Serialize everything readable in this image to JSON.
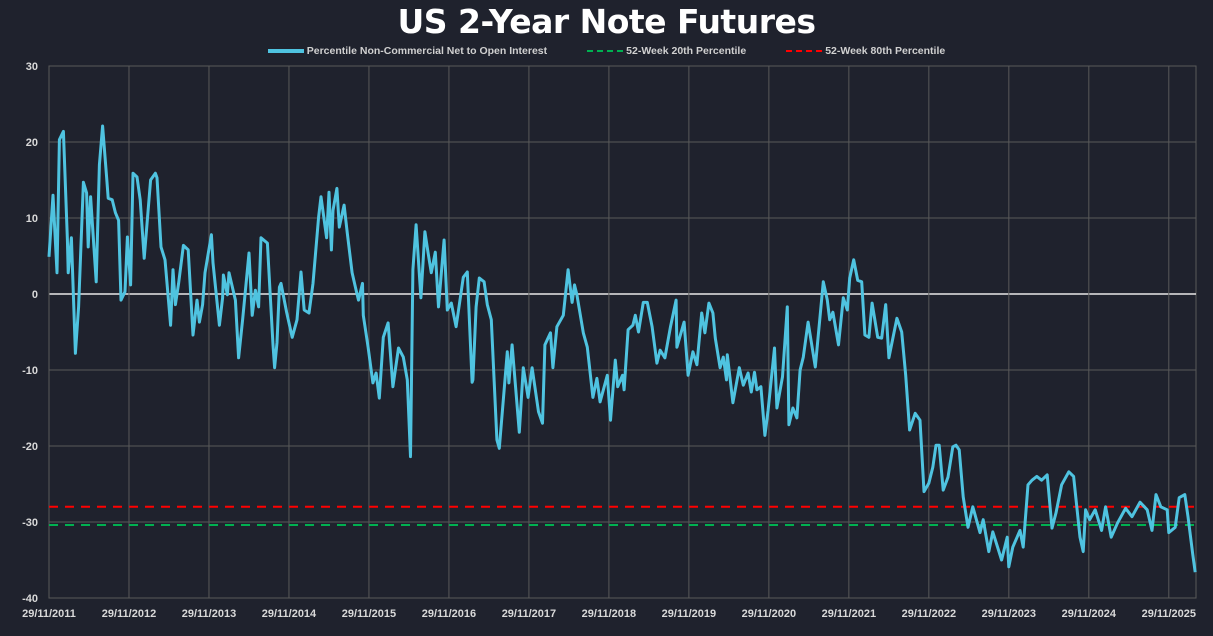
{
  "chart_data": {
    "type": "line",
    "title": "US 2-Year Note Futures",
    "xlabel": "",
    "ylabel": "",
    "ylim": [
      -40,
      30
    ],
    "xlim": [
      2011.91,
      2026.25
    ],
    "yticks": [
      "30",
      "20",
      "10",
      "0",
      "-10",
      "-20",
      "-30",
      "-40"
    ],
    "ytick_values": [
      30,
      20,
      10,
      0,
      -10,
      -20,
      -30,
      -40
    ],
    "xticks": [
      "29/11/2011",
      "29/11/2012",
      "29/11/2013",
      "29/11/2014",
      "29/11/2015",
      "29/11/2016",
      "29/11/2017",
      "29/11/2018",
      "29/11/2019",
      "29/11/2020",
      "29/11/2021",
      "29/11/2022",
      "29/11/2023",
      "29/11/2024",
      "29/11/2025"
    ],
    "xtick_values": [
      2011.91,
      2012.91,
      2013.91,
      2014.91,
      2015.91,
      2016.91,
      2017.91,
      2018.91,
      2019.91,
      2020.91,
      2021.91,
      2022.91,
      2023.91,
      2024.91,
      2025.91
    ],
    "grid": true,
    "legend_position": "top-center",
    "series": [
      {
        "name": "Percentile Non-Commercial Net to Open Interest",
        "color": "#4fc3e0",
        "style": "solid",
        "points": [
          [
            2011.91,
            4.9
          ],
          [
            2011.96,
            13
          ],
          [
            2012.01,
            2.8
          ],
          [
            2012.04,
            20.3
          ],
          [
            2012.09,
            21.4
          ],
          [
            2012.14,
            7.1
          ],
          [
            2012.15,
            2.8
          ],
          [
            2012.19,
            7.4
          ],
          [
            2012.24,
            -7.8
          ],
          [
            2012.28,
            -1.7
          ],
          [
            2012.34,
            14.7
          ],
          [
            2012.38,
            13.3
          ],
          [
            2012.4,
            6.2
          ],
          [
            2012.43,
            12.8
          ],
          [
            2012.5,
            1.6
          ],
          [
            2012.54,
            17
          ],
          [
            2012.58,
            22.1
          ],
          [
            2012.63,
            15.4
          ],
          [
            2012.65,
            12.6
          ],
          [
            2012.7,
            12.4
          ],
          [
            2012.74,
            10.7
          ],
          [
            2012.78,
            9.7
          ],
          [
            2012.81,
            -0.8
          ],
          [
            2012.86,
            0.3
          ],
          [
            2012.89,
            7.5
          ],
          [
            2012.93,
            1.2
          ],
          [
            2012.96,
            15.9
          ],
          [
            2013.01,
            15.4
          ],
          [
            2013.05,
            12.4
          ],
          [
            2013.1,
            4.7
          ],
          [
            2013.18,
            15
          ],
          [
            2013.24,
            15.9
          ],
          [
            2013.26,
            15.3
          ],
          [
            2013.31,
            6.2
          ],
          [
            2013.36,
            4.5
          ],
          [
            2013.43,
            -4.1
          ],
          [
            2013.46,
            3.2
          ],
          [
            2013.49,
            -1.4
          ],
          [
            2013.53,
            1.4
          ],
          [
            2013.59,
            6.4
          ],
          [
            2013.65,
            5.8
          ],
          [
            2013.71,
            -5.4
          ],
          [
            2013.76,
            -0.8
          ],
          [
            2013.79,
            -3.7
          ],
          [
            2013.83,
            -1.4
          ],
          [
            2013.86,
            2.8
          ],
          [
            2013.94,
            7.8
          ],
          [
            2013.96,
            4.1
          ],
          [
            2014.04,
            -4.1
          ],
          [
            2014.08,
            -0.5
          ],
          [
            2014.09,
            2.5
          ],
          [
            2014.14,
            -0.1
          ],
          [
            2014.16,
            2.8
          ],
          [
            2014.24,
            -0.8
          ],
          [
            2014.28,
            -8.4
          ],
          [
            2014.33,
            -3.4
          ],
          [
            2014.41,
            5.4
          ],
          [
            2014.45,
            -2.8
          ],
          [
            2014.49,
            0.5
          ],
          [
            2014.53,
            -1.7
          ],
          [
            2014.56,
            7.4
          ],
          [
            2014.64,
            6.7
          ],
          [
            2014.66,
            2.8
          ],
          [
            2014.71,
            -6.7
          ],
          [
            2014.73,
            -9.7
          ],
          [
            2014.76,
            -6.4
          ],
          [
            2014.79,
            0.9
          ],
          [
            2014.81,
            1.4
          ],
          [
            2014.88,
            -2.4
          ],
          [
            2014.95,
            -5.7
          ],
          [
            2015.01,
            -3.4
          ],
          [
            2015.06,
            2.9
          ],
          [
            2015.1,
            -2.1
          ],
          [
            2015.16,
            -2.5
          ],
          [
            2015.21,
            1.4
          ],
          [
            2015.28,
            10.1
          ],
          [
            2015.31,
            12.8
          ],
          [
            2015.38,
            7.4
          ],
          [
            2015.41,
            13.4
          ],
          [
            2015.44,
            5.8
          ],
          [
            2015.46,
            11
          ],
          [
            2015.51,
            13.9
          ],
          [
            2015.54,
            8.8
          ],
          [
            2015.6,
            11.7
          ],
          [
            2015.64,
            8
          ],
          [
            2015.7,
            2.8
          ],
          [
            2015.75,
            0.5
          ],
          [
            2015.78,
            -0.8
          ],
          [
            2015.83,
            1.4
          ],
          [
            2015.84,
            -2.8
          ],
          [
            2015.9,
            -7
          ],
          [
            2015.96,
            -11.7
          ],
          [
            2016.0,
            -10.4
          ],
          [
            2016.04,
            -13.7
          ],
          [
            2016.09,
            -5.7
          ],
          [
            2016.15,
            -3.8
          ],
          [
            2016.21,
            -12.2
          ],
          [
            2016.28,
            -7.1
          ],
          [
            2016.34,
            -8.3
          ],
          [
            2016.39,
            -11.3
          ],
          [
            2016.43,
            -21.4
          ],
          [
            2016.46,
            3.2
          ],
          [
            2016.5,
            9.1
          ],
          [
            2016.56,
            -0.5
          ],
          [
            2016.61,
            8.2
          ],
          [
            2016.65,
            5.4
          ],
          [
            2016.69,
            2.8
          ],
          [
            2016.74,
            5.5
          ],
          [
            2016.78,
            -1.7
          ],
          [
            2016.85,
            7.1
          ],
          [
            2016.89,
            -2.1
          ],
          [
            2016.94,
            -1.2
          ],
          [
            2017.0,
            -4.3
          ],
          [
            2017.09,
            2.2
          ],
          [
            2017.14,
            2.9
          ],
          [
            2017.2,
            -11.6
          ],
          [
            2017.21,
            -11.3
          ],
          [
            2017.25,
            -1.7
          ],
          [
            2017.29,
            2.1
          ],
          [
            2017.35,
            1.6
          ],
          [
            2017.39,
            -1.4
          ],
          [
            2017.44,
            -3.4
          ],
          [
            2017.51,
            -19.2
          ],
          [
            2017.54,
            -20.3
          ],
          [
            2017.64,
            -7.6
          ],
          [
            2017.66,
            -11.7
          ],
          [
            2017.7,
            -6.7
          ],
          [
            2017.79,
            -18.2
          ],
          [
            2017.84,
            -9.7
          ],
          [
            2017.9,
            -13.6
          ],
          [
            2017.95,
            -9.7
          ],
          [
            2018.03,
            -15.5
          ],
          [
            2018.08,
            -17
          ],
          [
            2018.11,
            -6.7
          ],
          [
            2018.18,
            -5.1
          ],
          [
            2018.21,
            -9.7
          ],
          [
            2018.26,
            -4.3
          ],
          [
            2018.34,
            -2.8
          ],
          [
            2018.4,
            3.2
          ],
          [
            2018.45,
            -1.1
          ],
          [
            2018.48,
            1.2
          ],
          [
            2018.51,
            -0.1
          ],
          [
            2018.59,
            -5.1
          ],
          [
            2018.64,
            -7
          ],
          [
            2018.71,
            -13.6
          ],
          [
            2018.76,
            -11.1
          ],
          [
            2018.8,
            -14.2
          ],
          [
            2018.89,
            -10.7
          ],
          [
            2018.93,
            -16.6
          ],
          [
            2018.99,
            -8.7
          ],
          [
            2019.02,
            -12.2
          ],
          [
            2019.08,
            -10.7
          ],
          [
            2019.1,
            -12.6
          ],
          [
            2019.15,
            -4.7
          ],
          [
            2019.21,
            -4.1
          ],
          [
            2019.24,
            -2.8
          ],
          [
            2019.28,
            -5
          ],
          [
            2019.34,
            -1.1
          ],
          [
            2019.39,
            -1.1
          ],
          [
            2019.45,
            -4.3
          ],
          [
            2019.51,
            -9.1
          ],
          [
            2019.55,
            -7.4
          ],
          [
            2019.61,
            -8.4
          ],
          [
            2019.68,
            -4.3
          ],
          [
            2019.75,
            -0.8
          ],
          [
            2019.76,
            -7
          ],
          [
            2019.85,
            -3.7
          ],
          [
            2019.9,
            -10.7
          ],
          [
            2019.96,
            -7.6
          ],
          [
            2020.01,
            -9.3
          ],
          [
            2020.07,
            -2.5
          ],
          [
            2020.11,
            -5.1
          ],
          [
            2020.16,
            -1.2
          ],
          [
            2020.21,
            -2.5
          ],
          [
            2020.24,
            -5.8
          ],
          [
            2020.3,
            -9.7
          ],
          [
            2020.34,
            -8.3
          ],
          [
            2020.38,
            -11.3
          ],
          [
            2020.39,
            -8
          ],
          [
            2020.46,
            -14.3
          ],
          [
            2020.54,
            -9.7
          ],
          [
            2020.59,
            -12
          ],
          [
            2020.65,
            -10.4
          ],
          [
            2020.69,
            -12.9
          ],
          [
            2020.73,
            -10.3
          ],
          [
            2020.76,
            -12.6
          ],
          [
            2020.81,
            -12.2
          ],
          [
            2020.86,
            -18.6
          ],
          [
            2020.9,
            -15.3
          ],
          [
            2020.98,
            -7.1
          ],
          [
            2021.01,
            -15
          ],
          [
            2021.08,
            -10.9
          ],
          [
            2021.14,
            -1.7
          ],
          [
            2021.16,
            -17.2
          ],
          [
            2021.21,
            -15
          ],
          [
            2021.26,
            -16.3
          ],
          [
            2021.3,
            -10
          ],
          [
            2021.34,
            -8.3
          ],
          [
            2021.4,
            -3.7
          ],
          [
            2021.49,
            -9.6
          ],
          [
            2021.59,
            1.6
          ],
          [
            2021.64,
            -0.8
          ],
          [
            2021.67,
            -3.4
          ],
          [
            2021.71,
            -2.4
          ],
          [
            2021.78,
            -6.7
          ],
          [
            2021.84,
            -0.5
          ],
          [
            2021.89,
            -2.1
          ],
          [
            2021.92,
            2.1
          ],
          [
            2021.97,
            4.5
          ],
          [
            2022.02,
            1.8
          ],
          [
            2022.07,
            1.6
          ],
          [
            2022.11,
            -5.4
          ],
          [
            2022.16,
            -5.7
          ],
          [
            2022.2,
            -1.2
          ],
          [
            2022.27,
            -5.7
          ],
          [
            2022.32,
            -5.8
          ],
          [
            2022.37,
            -1.4
          ],
          [
            2022.41,
            -8.4
          ],
          [
            2022.51,
            -3.2
          ],
          [
            2022.57,
            -5
          ],
          [
            2022.62,
            -10.7
          ],
          [
            2022.67,
            -17.9
          ],
          [
            2022.74,
            -15.7
          ],
          [
            2022.8,
            -16.6
          ],
          [
            2022.85,
            -26
          ],
          [
            2022.91,
            -24.9
          ],
          [
            2022.96,
            -22.8
          ],
          [
            2023.0,
            -19.9
          ],
          [
            2023.04,
            -19.9
          ],
          [
            2023.09,
            -25.8
          ],
          [
            2023.15,
            -24.1
          ],
          [
            2023.21,
            -20.1
          ],
          [
            2023.25,
            -19.9
          ],
          [
            2023.29,
            -20.5
          ],
          [
            2023.34,
            -26.7
          ],
          [
            2023.4,
            -30.7
          ],
          [
            2023.46,
            -28
          ],
          [
            2023.55,
            -31.4
          ],
          [
            2023.59,
            -29.7
          ],
          [
            2023.66,
            -33.9
          ],
          [
            2023.71,
            -31.3
          ],
          [
            2023.82,
            -35
          ],
          [
            2023.89,
            -32
          ],
          [
            2023.91,
            -35.9
          ],
          [
            2023.96,
            -33.3
          ],
          [
            2024.05,
            -31.1
          ],
          [
            2024.09,
            -33.3
          ],
          [
            2024.15,
            -25.1
          ],
          [
            2024.2,
            -24.5
          ],
          [
            2024.26,
            -24
          ],
          [
            2024.32,
            -24.5
          ],
          [
            2024.39,
            -23.8
          ],
          [
            2024.45,
            -30.8
          ],
          [
            2024.5,
            -28.8
          ],
          [
            2024.57,
            -25.1
          ],
          [
            2024.66,
            -23.4
          ],
          [
            2024.72,
            -24
          ],
          [
            2024.76,
            -28
          ],
          [
            2024.8,
            -32
          ],
          [
            2024.84,
            -33.9
          ],
          [
            2024.87,
            -28.4
          ],
          [
            2024.92,
            -29.7
          ],
          [
            2024.99,
            -28.4
          ],
          [
            2025.07,
            -31.1
          ],
          [
            2025.12,
            -28
          ],
          [
            2025.19,
            -32
          ],
          [
            2025.27,
            -30.1
          ],
          [
            2025.37,
            -28.2
          ],
          [
            2025.45,
            -29.3
          ],
          [
            2025.55,
            -27.4
          ],
          [
            2025.64,
            -28.4
          ],
          [
            2025.7,
            -31.1
          ],
          [
            2025.75,
            -26.4
          ],
          [
            2025.81,
            -28
          ],
          [
            2025.89,
            -28.4
          ],
          [
            2025.91,
            -31.4
          ],
          [
            2025.99,
            -30.7
          ],
          [
            2026.04,
            -26.8
          ],
          [
            2026.11,
            -26.4
          ],
          [
            2026.15,
            -29.3
          ],
          [
            2026.21,
            -34.3
          ],
          [
            2026.24,
            -36.6
          ]
        ]
      },
      {
        "name": "52-Week 20th Percentile",
        "color": "#00b050",
        "style": "dashed",
        "value": -30.4
      },
      {
        "name": "52-Week 80th Percentile",
        "color": "#ff0000",
        "style": "dashed",
        "value": -28.0
      }
    ]
  }
}
